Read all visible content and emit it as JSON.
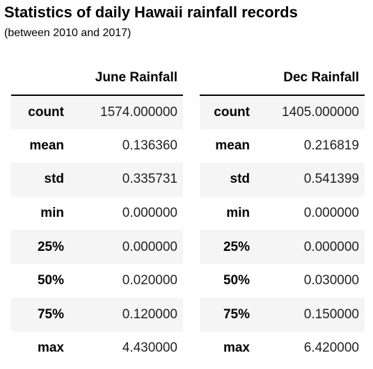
{
  "header": {
    "title": "Statistics of daily Hawaii rainfall records",
    "subtitle": "(between 2010 and 2017)"
  },
  "tables": [
    {
      "column": "June Rainfall",
      "rows": [
        {
          "stat": "count",
          "value": "1574.000000"
        },
        {
          "stat": "mean",
          "value": "0.136360"
        },
        {
          "stat": "std",
          "value": "0.335731"
        },
        {
          "stat": "min",
          "value": "0.000000"
        },
        {
          "stat": "25%",
          "value": "0.000000"
        },
        {
          "stat": "50%",
          "value": "0.020000"
        },
        {
          "stat": "75%",
          "value": "0.120000"
        },
        {
          "stat": "max",
          "value": "4.430000"
        }
      ]
    },
    {
      "column": "Dec Rainfall",
      "rows": [
        {
          "stat": "count",
          "value": "1405.000000"
        },
        {
          "stat": "mean",
          "value": "0.216819"
        },
        {
          "stat": "std",
          "value": "0.541399"
        },
        {
          "stat": "min",
          "value": "0.000000"
        },
        {
          "stat": "25%",
          "value": "0.000000"
        },
        {
          "stat": "50%",
          "value": "0.030000"
        },
        {
          "stat": "75%",
          "value": "0.150000"
        },
        {
          "stat": "max",
          "value": "6.420000"
        }
      ]
    }
  ]
}
